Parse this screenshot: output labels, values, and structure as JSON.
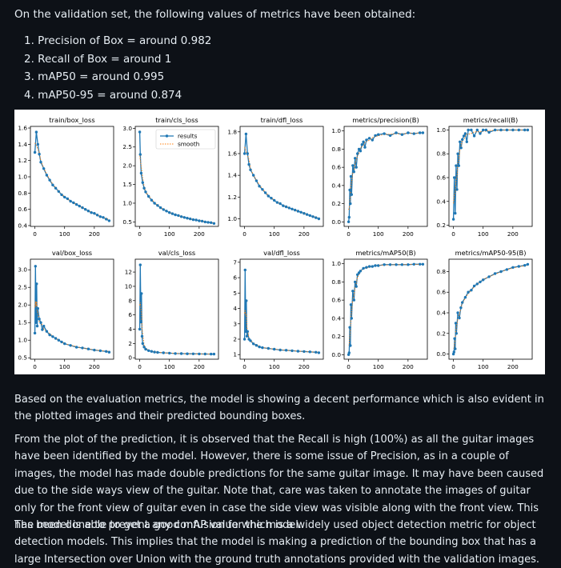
{
  "intro": "On the validation set, the following values of metrics have been obtained:",
  "metrics": [
    "1. Precision of Box = around 0.982",
    "2. Recall of Box = around 1",
    "3. mAP50 = around 0.995",
    "4. mAP50-95 = around 0.874"
  ],
  "paragraphs": [
    "Based on the evaluation metrics, the model is showing a decent performance which is also evident in the plotted images and their predicted bounding boxes.",
    "From the plot of the prediction, it is observed that the Recall is high (100%) as all the guitar images have been identified by the model. However, there is some issue of Precision, as in a couple of images, the model has made double predictions for the same guitar image. It may have been caused due to the side ways view of the guitar. Note that, care was taken to annotate the images of guitar only for the front view of guitar even in case the side view was visible along with the front view. This has been done to prevent any confusion for the model.",
    "The model is able to get a good mAP value which is a widely used object detection metric for object detection models. This implies that the model is making a prediction of the bounding box that has a large Intersection over Union with the ground truth annotations provided with the validation images."
  ],
  "colors": {
    "results": "#1f77b4",
    "smooth": "#ff7f0e"
  },
  "chart_data": [
    {
      "type": "line",
      "title": "train/box_loss",
      "xlim": [
        -15,
        265
      ],
      "ylim": [
        0.39,
        1.62
      ],
      "xticks": [
        0,
        100,
        200
      ],
      "yticks": [
        0.4,
        0.6,
        0.8,
        1.0,
        1.2,
        1.4,
        1.6
      ],
      "ytick_labels": [
        "0.4",
        "0.6",
        "0.8",
        "1.0",
        "1.2",
        "1.4",
        "1.6"
      ],
      "series": [
        {
          "name": "results",
          "x": [
            0,
            5,
            10,
            15,
            20,
            30,
            40,
            50,
            60,
            70,
            80,
            90,
            100,
            110,
            120,
            130,
            140,
            150,
            160,
            170,
            180,
            190,
            200,
            210,
            220,
            230,
            240,
            250
          ],
          "y": [
            1.3,
            1.55,
            1.4,
            1.28,
            1.18,
            1.1,
            1.02,
            0.96,
            0.9,
            0.86,
            0.82,
            0.78,
            0.75,
            0.73,
            0.7,
            0.68,
            0.66,
            0.64,
            0.62,
            0.6,
            0.58,
            0.56,
            0.55,
            0.53,
            0.51,
            0.5,
            0.48,
            0.46
          ]
        }
      ]
    },
    {
      "type": "line",
      "title": "train/cls_loss",
      "xlim": [
        -15,
        265
      ],
      "ylim": [
        0.38,
        3.05
      ],
      "xticks": [
        0,
        100,
        200
      ],
      "yticks": [
        0.5,
        1.0,
        1.5,
        2.0,
        2.5,
        3.0
      ],
      "ytick_labels": [
        "0.5",
        "1.0",
        "1.5",
        "2.0",
        "2.5",
        "3.0"
      ],
      "legend": "top-right",
      "series": [
        {
          "name": "results",
          "x": [
            0,
            2,
            5,
            10,
            15,
            20,
            30,
            40,
            50,
            60,
            70,
            80,
            90,
            100,
            110,
            120,
            130,
            140,
            150,
            160,
            170,
            180,
            190,
            200,
            210,
            220,
            230,
            240,
            250
          ],
          "y": [
            2.9,
            2.3,
            1.8,
            1.55,
            1.4,
            1.3,
            1.18,
            1.08,
            1.0,
            0.94,
            0.88,
            0.83,
            0.79,
            0.75,
            0.72,
            0.69,
            0.67,
            0.64,
            0.62,
            0.6,
            0.58,
            0.56,
            0.55,
            0.53,
            0.52,
            0.5,
            0.49,
            0.48,
            0.46
          ]
        },
        {
          "name": "smooth"
        }
      ]
    },
    {
      "type": "line",
      "title": "train/dfl_loss",
      "xlim": [
        -15,
        265
      ],
      "ylim": [
        0.93,
        1.85
      ],
      "xticks": [
        0,
        100,
        200
      ],
      "yticks": [
        1.0,
        1.2,
        1.4,
        1.6,
        1.8
      ],
      "ytick_labels": [
        "1.0",
        "1.2",
        "1.4",
        "1.6",
        "1.8"
      ],
      "series": [
        {
          "name": "results",
          "x": [
            0,
            5,
            10,
            15,
            20,
            30,
            40,
            50,
            60,
            70,
            80,
            90,
            100,
            110,
            120,
            130,
            140,
            150,
            160,
            170,
            180,
            190,
            200,
            210,
            220,
            230,
            240,
            250
          ],
          "y": [
            1.6,
            1.78,
            1.6,
            1.5,
            1.45,
            1.4,
            1.35,
            1.3,
            1.27,
            1.24,
            1.21,
            1.19,
            1.17,
            1.15,
            1.14,
            1.12,
            1.11,
            1.1,
            1.09,
            1.08,
            1.07,
            1.06,
            1.05,
            1.04,
            1.03,
            1.02,
            1.01,
            1.0
          ]
        }
      ]
    },
    {
      "type": "line",
      "title": "metrics/precision(B)",
      "xlim": [
        -15,
        265
      ],
      "ylim": [
        -0.05,
        1.05
      ],
      "xticks": [
        0,
        100,
        200
      ],
      "yticks": [
        0.0,
        0.2,
        0.4,
        0.6,
        0.8,
        1.0
      ],
      "ytick_labels": [
        "0.0",
        "0.2",
        "0.4",
        "0.6",
        "0.8",
        "1.0"
      ],
      "series": [
        {
          "name": "results",
          "x": [
            0,
            2,
            4,
            6,
            8,
            10,
            14,
            18,
            22,
            26,
            30,
            35,
            40,
            45,
            50,
            55,
            60,
            70,
            80,
            90,
            100,
            120,
            140,
            160,
            180,
            200,
            220,
            240,
            250
          ],
          "y": [
            0.0,
            0.05,
            0.35,
            0.2,
            0.5,
            0.3,
            0.62,
            0.55,
            0.7,
            0.6,
            0.75,
            0.8,
            0.78,
            0.85,
            0.88,
            0.82,
            0.9,
            0.92,
            0.9,
            0.95,
            0.96,
            0.97,
            0.95,
            0.98,
            0.96,
            0.98,
            0.97,
            0.98,
            0.98
          ]
        }
      ]
    },
    {
      "type": "line",
      "title": "metrics/recall(B)",
      "xlim": [
        -15,
        265
      ],
      "ylim": [
        0.19,
        1.03
      ],
      "xticks": [
        0,
        100,
        200
      ],
      "yticks": [
        0.2,
        0.4,
        0.6,
        0.8,
        1.0
      ],
      "ytick_labels": [
        "0.2",
        "0.4",
        "0.6",
        "0.8",
        "1.0"
      ],
      "series": [
        {
          "name": "results",
          "x": [
            0,
            3,
            6,
            9,
            12,
            15,
            18,
            22,
            26,
            30,
            35,
            40,
            45,
            50,
            60,
            70,
            80,
            90,
            100,
            110,
            120,
            140,
            160,
            180,
            200,
            220,
            240,
            250
          ],
          "y": [
            0.25,
            0.6,
            0.3,
            0.7,
            0.5,
            0.8,
            0.7,
            0.9,
            0.85,
            0.92,
            0.95,
            0.97,
            0.9,
            1.0,
            1.0,
            0.95,
            1.0,
            0.97,
            1.0,
            1.0,
            0.98,
            1.0,
            1.0,
            1.0,
            1.0,
            1.0,
            1.0,
            1.0
          ]
        }
      ]
    },
    {
      "type": "line",
      "title": "val/box_loss",
      "xlim": [
        -15,
        265
      ],
      "ylim": [
        0.46,
        3.3
      ],
      "xticks": [
        0,
        100,
        200
      ],
      "yticks": [
        0.5,
        1.0,
        1.5,
        2.0,
        2.5,
        3.0
      ],
      "ytick_labels": [
        "0.5",
        "1.0",
        "1.5",
        "2.0",
        "2.5",
        "3.0"
      ],
      "series": [
        {
          "name": "results",
          "x": [
            0,
            2,
            4,
            6,
            8,
            10,
            15,
            20,
            25,
            30,
            40,
            50,
            60,
            70,
            80,
            90,
            100,
            120,
            140,
            160,
            180,
            200,
            220,
            240,
            250
          ],
          "y": [
            1.2,
            3.1,
            1.5,
            2.6,
            1.4,
            1.9,
            1.6,
            1.5,
            1.3,
            1.4,
            1.25,
            1.15,
            1.1,
            1.05,
            1.0,
            0.95,
            0.9,
            0.85,
            0.8,
            0.78,
            0.75,
            0.72,
            0.7,
            0.68,
            0.66
          ]
        }
      ]
    },
    {
      "type": "line",
      "title": "val/cls_loss",
      "xlim": [
        -15,
        265
      ],
      "ylim": [
        -0.2,
        13.8
      ],
      "xticks": [
        0,
        100,
        200
      ],
      "yticks": [
        0,
        2,
        4,
        6,
        8,
        10,
        12
      ],
      "ytick_labels": [
        "0",
        "2",
        "4",
        "6",
        "8",
        "10",
        "12"
      ],
      "series": [
        {
          "name": "results",
          "x": [
            0,
            2,
            4,
            6,
            8,
            10,
            15,
            20,
            30,
            40,
            50,
            60,
            80,
            100,
            120,
            140,
            160,
            180,
            200,
            220,
            240,
            250
          ],
          "y": [
            4,
            13,
            5,
            9,
            3,
            2,
            1.5,
            1.2,
            1.0,
            0.9,
            0.8,
            0.75,
            0.7,
            0.65,
            0.6,
            0.58,
            0.56,
            0.55,
            0.54,
            0.53,
            0.52,
            0.52
          ]
        }
      ]
    },
    {
      "type": "line",
      "title": "val/dfl_loss",
      "xlim": [
        -15,
        265
      ],
      "ylim": [
        0.7,
        7.2
      ],
      "xticks": [
        0,
        100,
        200
      ],
      "yticks": [
        1,
        2,
        3,
        4,
        5,
        6,
        7
      ],
      "ytick_labels": [
        "1",
        "2",
        "3",
        "4",
        "5",
        "6",
        "7"
      ],
      "series": [
        {
          "name": "results",
          "x": [
            0,
            2,
            4,
            6,
            8,
            10,
            15,
            20,
            30,
            40,
            50,
            60,
            80,
            100,
            120,
            140,
            160,
            180,
            200,
            220,
            240,
            250
          ],
          "y": [
            2,
            6.5,
            2.5,
            4.5,
            2.2,
            2.5,
            2.0,
            1.9,
            1.7,
            1.6,
            1.5,
            1.45,
            1.4,
            1.35,
            1.3,
            1.28,
            1.25,
            1.22,
            1.2,
            1.18,
            1.15,
            1.12
          ]
        }
      ]
    },
    {
      "type": "line",
      "title": "metrics/mAP50(B)",
      "xlim": [
        -15,
        265
      ],
      "ylim": [
        -0.05,
        1.05
      ],
      "xticks": [
        0,
        100,
        200
      ],
      "yticks": [
        0.0,
        0.2,
        0.4,
        0.6,
        0.8,
        1.0
      ],
      "ytick_labels": [
        "0.0",
        "0.2",
        "0.4",
        "0.6",
        "0.8",
        "1.0"
      ],
      "series": [
        {
          "name": "results",
          "x": [
            0,
            2,
            4,
            6,
            8,
            10,
            14,
            18,
            22,
            26,
            30,
            35,
            40,
            50,
            60,
            70,
            80,
            90,
            100,
            120,
            140,
            160,
            180,
            200,
            220,
            240,
            250
          ],
          "y": [
            0.0,
            0.02,
            0.3,
            0.1,
            0.55,
            0.4,
            0.7,
            0.6,
            0.8,
            0.75,
            0.88,
            0.9,
            0.92,
            0.95,
            0.96,
            0.97,
            0.97,
            0.98,
            0.98,
            0.99,
            0.99,
            0.99,
            0.99,
            0.99,
            0.995,
            0.995,
            0.995
          ]
        }
      ]
    },
    {
      "type": "line",
      "title": "metrics/mAP50-95(B)",
      "xlim": [
        -15,
        265
      ],
      "ylim": [
        -0.05,
        0.92
      ],
      "xticks": [
        0,
        100,
        200
      ],
      "yticks": [
        0.0,
        0.2,
        0.4,
        0.6,
        0.8
      ],
      "ytick_labels": [
        "0.0",
        "0.2",
        "0.4",
        "0.6",
        "0.8"
      ],
      "series": [
        {
          "name": "results",
          "x": [
            0,
            2,
            4,
            6,
            8,
            10,
            15,
            20,
            25,
            30,
            40,
            50,
            60,
            70,
            80,
            90,
            100,
            120,
            140,
            160,
            180,
            200,
            220,
            240,
            250
          ],
          "y": [
            0.0,
            0.02,
            0.15,
            0.05,
            0.3,
            0.2,
            0.4,
            0.35,
            0.45,
            0.5,
            0.55,
            0.6,
            0.62,
            0.66,
            0.68,
            0.7,
            0.72,
            0.75,
            0.78,
            0.8,
            0.82,
            0.84,
            0.85,
            0.86,
            0.87
          ]
        }
      ]
    }
  ]
}
